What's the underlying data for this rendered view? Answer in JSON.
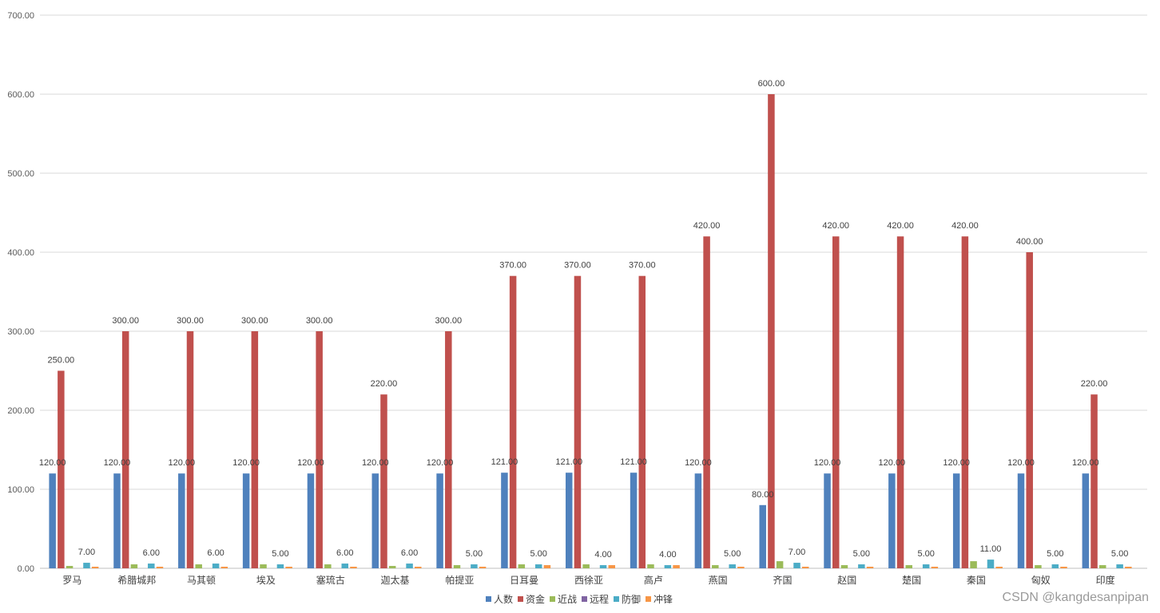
{
  "chart_data": {
    "type": "bar",
    "categories": [
      "罗马",
      "希腊城邦",
      "马其顿",
      "埃及",
      "塞琉古",
      "迦太基",
      "帕提亚",
      "日耳曼",
      "西徐亚",
      "高卢",
      "燕国",
      "齐国",
      "赵国",
      "楚国",
      "秦国",
      "匈奴",
      "印度"
    ],
    "series": [
      {
        "name": "人数",
        "color": "#4F81BD",
        "values": [
          120,
          120,
          120,
          120,
          120,
          120,
          120,
          121,
          121,
          121,
          120,
          80,
          120,
          120,
          120,
          120,
          120
        ]
      },
      {
        "name": "资金",
        "color": "#C0504D",
        "values": [
          250,
          300,
          300,
          300,
          300,
          220,
          300,
          370,
          370,
          370,
          420,
          600,
          420,
          420,
          420,
          400,
          220
        ]
      },
      {
        "name": "近战",
        "color": "#9BBB59",
        "values": [
          3,
          5,
          5,
          5,
          5,
          3,
          4,
          5,
          5,
          5,
          4,
          9,
          4,
          4,
          9,
          4,
          4
        ]
      },
      {
        "name": "远程",
        "color": "#8064A2",
        "values": [
          0,
          0,
          0,
          0,
          0,
          0,
          0,
          0,
          0,
          0,
          0,
          0,
          0,
          0,
          0,
          0,
          0
        ]
      },
      {
        "name": "防御",
        "color": "#4BACC6",
        "values": [
          7,
          6,
          6,
          5,
          6,
          6,
          5,
          5,
          4,
          4,
          5,
          7,
          5,
          5,
          11,
          5,
          5
        ]
      },
      {
        "name": "冲锋",
        "color": "#F79646",
        "values": [
          2,
          2,
          2,
          2,
          2,
          2,
          2,
          4,
          4,
          4,
          2,
          2,
          2,
          2,
          2,
          2,
          2
        ]
      }
    ],
    "labeled_series": [
      "人数",
      "资金",
      "防御"
    ],
    "ylim": [
      0,
      700
    ],
    "yticks": [
      "0.00",
      "100.00",
      "200.00",
      "300.00",
      "400.00",
      "500.00",
      "600.00",
      "700.00"
    ],
    "grid": true,
    "legend": "bottom",
    "label_format": "0.00"
  },
  "watermark": "CSDN @kangdesanpipan"
}
